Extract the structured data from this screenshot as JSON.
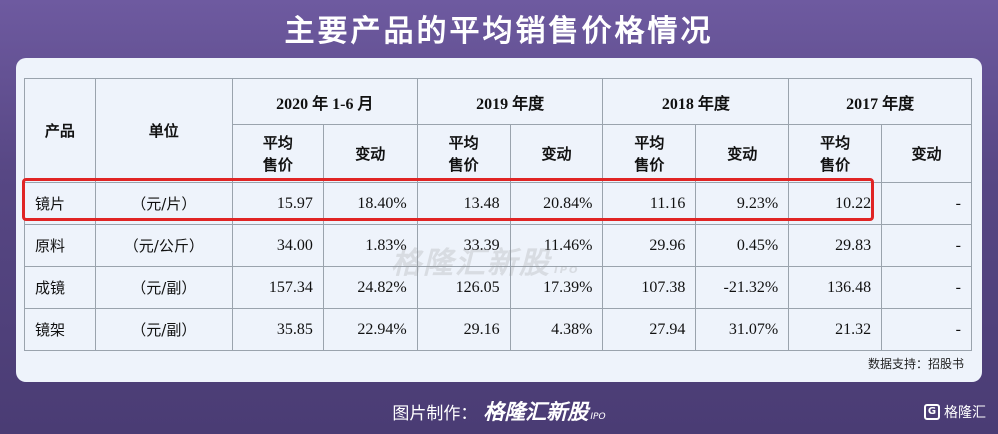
{
  "title": "主要产品的平均销售价格情况",
  "table": {
    "col_product": "产品",
    "col_unit": "单位",
    "years": [
      "2020 年 1-6 月",
      "2019 年度",
      "2018 年度",
      "2017 年度"
    ],
    "sub_price": "平均\n售价",
    "sub_change": "变动",
    "rows": [
      {
        "product": "镜片",
        "unit": "（元/片）",
        "values": [
          "15.97",
          "18.40%",
          "13.48",
          "20.84%",
          "11.16",
          "9.23%",
          "10.22",
          "-"
        ]
      },
      {
        "product": "原料",
        "unit": "（元/公斤）",
        "values": [
          "34.00",
          "1.83%",
          "33.39",
          "11.46%",
          "29.96",
          "0.45%",
          "29.83",
          "-"
        ]
      },
      {
        "product": "成镜",
        "unit": "（元/副）",
        "values": [
          "157.34",
          "24.82%",
          "126.05",
          "17.39%",
          "107.38",
          "-21.32%",
          "136.48",
          "-"
        ]
      },
      {
        "product": "镜架",
        "unit": "（元/副）",
        "values": [
          "35.85",
          "22.94%",
          "29.16",
          "4.38%",
          "27.94",
          "31.07%",
          "21.32",
          "-"
        ]
      }
    ]
  },
  "watermark": "格隆汇新股",
  "watermark_sub": "IPO",
  "source": "数据支持：招股书",
  "footer": {
    "prefix": "图片制作：",
    "brand": "格隆汇新股",
    "brand_sub": "IPO"
  },
  "logo": {
    "mark": "G",
    "text": "格隆汇"
  },
  "colors": {
    "highlight": "#e02424",
    "background": "#574784",
    "card": "#eef3fb"
  }
}
